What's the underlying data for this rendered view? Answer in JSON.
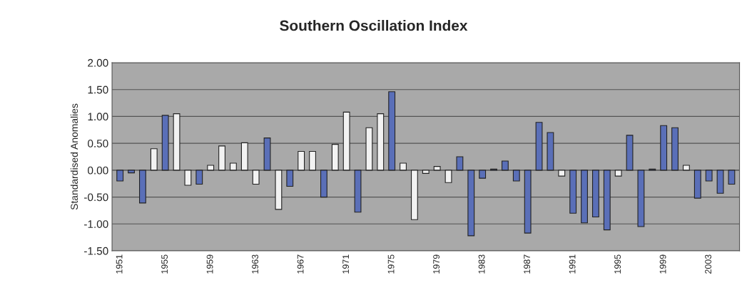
{
  "chart_data": {
    "type": "bar",
    "title": "Southern Oscillation Index",
    "ylabel": "Standardised Anomalies",
    "categories": [
      "1951",
      null,
      null,
      null,
      "1955",
      null,
      null,
      null,
      "1959",
      null,
      null,
      null,
      "1963",
      null,
      null,
      null,
      "1967",
      null,
      null,
      null,
      "1971",
      null,
      null,
      null,
      "1975",
      null,
      null,
      null,
      "1979",
      null,
      null,
      null,
      "1983",
      null,
      null,
      null,
      "1987",
      null,
      null,
      null,
      "1991",
      null,
      null,
      null,
      "1995",
      null,
      null,
      null,
      "1999",
      null,
      null,
      null,
      "2003",
      null,
      null
    ],
    "values": [
      -0.2,
      -0.05,
      -0.61,
      0.4,
      1.02,
      1.05,
      -0.28,
      -0.26,
      0.09,
      0.45,
      0.13,
      0.51,
      -0.26,
      0.6,
      -0.73,
      -0.3,
      0.35,
      0.35,
      -0.5,
      0.48,
      1.08,
      -0.78,
      0.79,
      1.05,
      1.46,
      0.13,
      -0.92,
      -0.06,
      0.07,
      -0.23,
      0.25,
      -1.22,
      -0.15,
      0.02,
      0.17,
      -0.2,
      -1.17,
      0.89,
      0.7,
      -0.11,
      -0.8,
      -0.98,
      -0.87,
      -1.11,
      -0.11,
      0.65,
      -1.05,
      0.02,
      0.83,
      0.79,
      0.09,
      -0.52,
      -0.2,
      -0.43,
      -0.26
    ],
    "colors": [
      "#5a6fb8",
      "#5a6fb8",
      "#5a6fb8",
      "#f2f2f2",
      "#5a6fb8",
      "#f2f2f2",
      "#f2f2f2",
      "#5a6fb8",
      "#f2f2f2",
      "#f2f2f2",
      "#f2f2f2",
      "#f2f2f2",
      "#f2f2f2",
      "#5a6fb8",
      "#f2f2f2",
      "#5a6fb8",
      "#f2f2f2",
      "#f2f2f2",
      "#5a6fb8",
      "#f2f2f2",
      "#f2f2f2",
      "#5a6fb8",
      "#f2f2f2",
      "#f2f2f2",
      "#5a6fb8",
      "#f2f2f2",
      "#f2f2f2",
      "#f2f2f2",
      "#f2f2f2",
      "#f2f2f2",
      "#5a6fb8",
      "#5a6fb8",
      "#5a6fb8",
      "#5a6fb8",
      "#5a6fb8",
      "#5a6fb8",
      "#5a6fb8",
      "#5a6fb8",
      "#5a6fb8",
      "#f2f2f2",
      "#5a6fb8",
      "#5a6fb8",
      "#5a6fb8",
      "#5a6fb8",
      "#f2f2f2",
      "#5a6fb8",
      "#5a6fb8",
      "#5a6fb8",
      "#5a6fb8",
      "#5a6fb8",
      "#f2f2f2",
      "#5a6fb8",
      "#5a6fb8",
      "#5a6fb8",
      "#5a6fb8"
    ],
    "ylim": [
      -1.5,
      2.0
    ],
    "yticks": [
      {
        "value": 2.0,
        "label": "2.00"
      },
      {
        "value": 1.5,
        "label": "1.50"
      },
      {
        "value": 1.0,
        "label": "1.00"
      },
      {
        "value": 0.5,
        "label": "0.50"
      },
      {
        "value": 0.0,
        "label": "0.00"
      },
      {
        "value": -0.5,
        "label": "-0.50"
      },
      {
        "value": -1.0,
        "label": "-1.00"
      },
      {
        "value": -1.5,
        "label": "-1.50"
      }
    ],
    "grid": "y",
    "legend": false
  }
}
